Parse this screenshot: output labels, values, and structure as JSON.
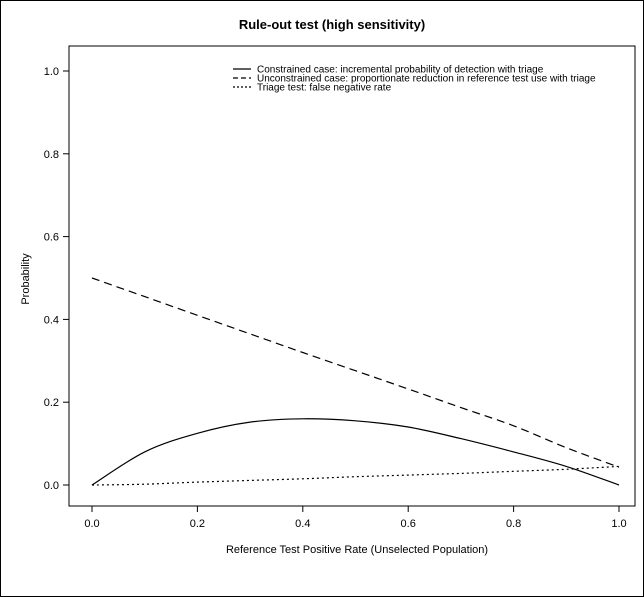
{
  "chart_data": {
    "type": "line",
    "title": "Rule-out test (high sensitivity)",
    "xlabel": "Reference Test Positive Rate (Unselected Population)",
    "ylabel": "Probability",
    "xlim": [
      0,
      1
    ],
    "ylim": [
      0,
      1
    ],
    "xticks": [
      "0.0",
      "0.2",
      "0.4",
      "0.6",
      "0.8",
      "1.0"
    ],
    "yticks": [
      "0.0",
      "0.2",
      "0.4",
      "0.6",
      "0.8",
      "1.0"
    ],
    "legend_position": "top-right",
    "series": [
      {
        "name": "Constrained case: incremental probability of detection with triage",
        "style": "solid",
        "x": [
          0,
          0.1,
          0.2,
          0.3,
          0.4,
          0.5,
          0.6,
          0.7,
          0.8,
          0.9,
          1.0
        ],
        "y": [
          0,
          0.08,
          0.125,
          0.152,
          0.16,
          0.155,
          0.14,
          0.112,
          0.08,
          0.045,
          0
        ]
      },
      {
        "name": "Unconstrained case: proportionate reduction in reference test use with triage",
        "style": "dashed",
        "x": [
          0,
          0.1,
          0.2,
          0.3,
          0.4,
          0.5,
          0.6,
          0.7,
          0.8,
          0.9,
          1.0
        ],
        "y": [
          0.5,
          0.455,
          0.41,
          0.365,
          0.32,
          0.276,
          0.232,
          0.187,
          0.143,
          0.09,
          0.043
        ]
      },
      {
        "name": "Triage test: false negative rate",
        "style": "dotted",
        "x": [
          0,
          0.1,
          0.2,
          0.3,
          0.4,
          0.5,
          0.6,
          0.7,
          0.8,
          0.9,
          1.0
        ],
        "y": [
          0,
          0.002,
          0.007,
          0.011,
          0.015,
          0.02,
          0.024,
          0.028,
          0.033,
          0.038,
          0.045
        ]
      }
    ]
  }
}
